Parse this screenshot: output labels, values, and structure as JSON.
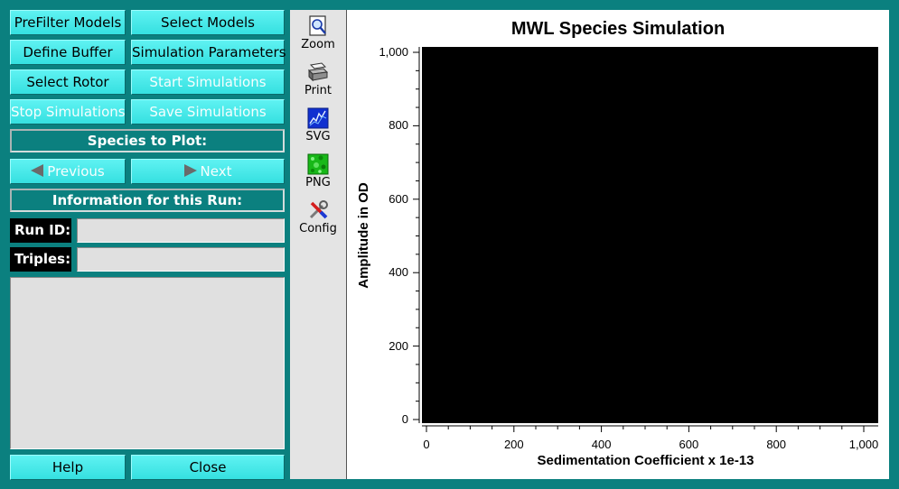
{
  "buttons": {
    "prefilter_models": "PreFilter Models",
    "select_models": "Select Models",
    "define_buffer": "Define Buffer",
    "simulation_parameters": "Simulation Parameters",
    "select_rotor": "Select Rotor",
    "start_simulations": "Start Simulations",
    "stop_simulations": "Stop Simulations",
    "save_simulations": "Save Simulations",
    "previous": "Previous",
    "next": "Next",
    "help": "Help",
    "close": "Close"
  },
  "banners": {
    "species_to_plot": "Species to Plot:",
    "information_for_run": "Information for this Run:"
  },
  "fields": {
    "run_id_label": "Run ID:",
    "run_id_value": "",
    "triples_label": "Triples:",
    "triples_value": "",
    "info_text": ""
  },
  "toolbar": {
    "zoom": "Zoom",
    "print": "Print",
    "svg": "SVG",
    "png": "PNG",
    "config": "Config"
  },
  "colors": {
    "background": "#0b807f",
    "button": "#35e0e0",
    "plot_canvas": "#000000"
  },
  "chart_data": {
    "type": "line",
    "title": "MWL Species Simulation",
    "xlabel": "Sedimentation Coefficient x 1e-13",
    "ylabel": "Amplitude in OD",
    "xlim": [
      0,
      1000
    ],
    "ylim": [
      0,
      1000
    ],
    "x_ticks": [
      "0",
      "200",
      "400",
      "600",
      "800",
      "1,000"
    ],
    "y_ticks": [
      "0",
      "200",
      "400",
      "600",
      "800",
      "1,000"
    ],
    "series": [],
    "grid": false
  }
}
